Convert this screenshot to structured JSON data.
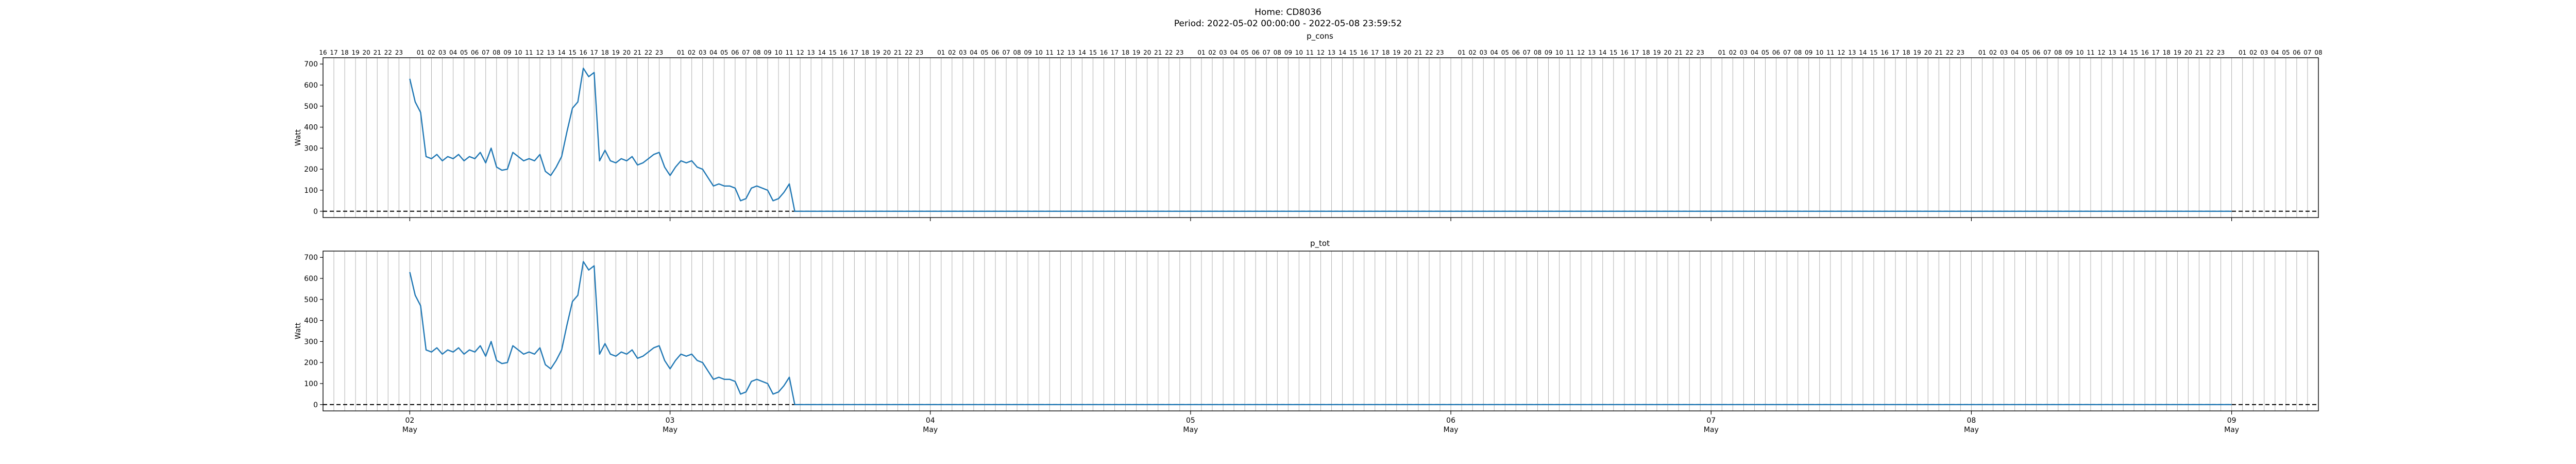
{
  "figure": {
    "title_line1": "Home: CD8036",
    "title_line2": "Period: 2022-05-02 00:00:00 - 2022-05-08 23:59:52"
  },
  "colors": {
    "line": "#1f77b4",
    "zero_line": "#000000",
    "hour_grid": "#b0b0b0",
    "axis": "#000000"
  },
  "chart_data": [
    {
      "type": "line",
      "title": "p_cons",
      "ylabel": "Watt",
      "xlabel": "",
      "x_unit": "hours since 2022-05-02 00:00",
      "xlim": [
        -8,
        176
      ],
      "ylim": [
        -30,
        730
      ],
      "y_ticks": [
        0,
        100,
        200,
        300,
        400,
        500,
        600,
        700
      ],
      "grid": "vertical hourly lines",
      "legend": "none",
      "zero_reference_line": "dashed at 0",
      "series": [
        {
          "x": [
            0,
            0.5,
            1,
            1.5,
            2,
            2.5,
            3,
            3.5,
            4,
            4.5,
            5,
            5.5,
            6,
            6.5,
            7,
            7.5,
            8,
            8.5,
            9,
            9.5,
            10,
            10.5,
            11,
            11.5,
            12,
            12.5,
            13,
            13.5,
            14,
            14.5,
            15,
            15.5,
            16,
            16.5,
            17,
            17.5,
            18,
            18.5,
            19,
            19.5,
            20,
            20.5,
            21,
            21.5,
            22,
            22.5,
            23,
            23.5,
            24,
            24.5,
            25,
            25.5,
            26,
            26.5,
            27,
            27.5,
            28,
            28.5,
            29,
            29.5,
            30,
            30.5,
            31,
            31.5,
            32,
            32.5,
            33,
            33.5,
            34,
            34.5,
            35,
            35.5,
            36,
            36.5,
            37,
            37.5,
            38,
            38.5,
            39,
            39.5,
            40,
            40.5,
            41,
            41.5,
            42,
            42.5,
            43,
            43.5,
            44,
            44.5,
            45,
            45.5,
            46,
            46.5,
            47,
            47.5,
            48,
            168
          ],
          "y": [
            630,
            520,
            470,
            260,
            250,
            270,
            240,
            260,
            250,
            270,
            240,
            260,
            250,
            280,
            230,
            300,
            210,
            195,
            200,
            280,
            260,
            240,
            250,
            240,
            270,
            190,
            170,
            210,
            260,
            380,
            490,
            520,
            680,
            640,
            660,
            240,
            290,
            240,
            230,
            250,
            240,
            260,
            220,
            230,
            250,
            270,
            280,
            210,
            170,
            210,
            240,
            230,
            240,
            210,
            200,
            160,
            120,
            130,
            120,
            120,
            110,
            50,
            60,
            110,
            120,
            110,
            100,
            50,
            60,
            90,
            130,
            0,
            0,
            0,
            0,
            0,
            0,
            0,
            0,
            0,
            0,
            0,
            0,
            0,
            0,
            0,
            0,
            0,
            0,
            0,
            0,
            0,
            0,
            0,
            0,
            0,
            0,
            0
          ]
        }
      ]
    },
    {
      "type": "line",
      "title": "p_tot",
      "ylabel": "Watt",
      "xlabel": "",
      "x_unit": "hours since 2022-05-02 00:00",
      "xlim": [
        -8,
        176
      ],
      "ylim": [
        -30,
        730
      ],
      "y_ticks": [
        0,
        100,
        200,
        300,
        400,
        500,
        600,
        700
      ],
      "grid": "vertical hourly lines",
      "legend": "none",
      "zero_reference_line": "dashed at 0",
      "series": [
        {
          "x": [
            0,
            0.5,
            1,
            1.5,
            2,
            2.5,
            3,
            3.5,
            4,
            4.5,
            5,
            5.5,
            6,
            6.5,
            7,
            7.5,
            8,
            8.5,
            9,
            9.5,
            10,
            10.5,
            11,
            11.5,
            12,
            12.5,
            13,
            13.5,
            14,
            14.5,
            15,
            15.5,
            16,
            16.5,
            17,
            17.5,
            18,
            18.5,
            19,
            19.5,
            20,
            20.5,
            21,
            21.5,
            22,
            22.5,
            23,
            23.5,
            24,
            24.5,
            25,
            25.5,
            26,
            26.5,
            27,
            27.5,
            28,
            28.5,
            29,
            29.5,
            30,
            30.5,
            31,
            31.5,
            32,
            32.5,
            33,
            33.5,
            34,
            34.5,
            35,
            35.5,
            36,
            36.5,
            37,
            37.5,
            38,
            38.5,
            39,
            39.5,
            40,
            40.5,
            41,
            41.5,
            42,
            42.5,
            43,
            43.5,
            44,
            44.5,
            45,
            45.5,
            46,
            46.5,
            47,
            47.5,
            48,
            168
          ],
          "y": [
            630,
            520,
            470,
            260,
            250,
            270,
            240,
            260,
            250,
            270,
            240,
            260,
            250,
            280,
            230,
            300,
            210,
            195,
            200,
            280,
            260,
            240,
            250,
            240,
            270,
            190,
            170,
            210,
            260,
            380,
            490,
            520,
            680,
            640,
            660,
            240,
            290,
            240,
            230,
            250,
            240,
            260,
            220,
            230,
            250,
            270,
            280,
            210,
            170,
            210,
            240,
            230,
            240,
            210,
            200,
            160,
            120,
            130,
            120,
            120,
            110,
            50,
            60,
            110,
            120,
            110,
            100,
            50,
            60,
            90,
            130,
            0,
            0,
            0,
            0,
            0,
            0,
            0,
            0,
            0,
            0,
            0,
            0,
            0,
            0,
            0,
            0,
            0,
            0,
            0,
            0,
            0,
            0,
            0,
            0,
            0,
            0,
            0
          ]
        }
      ]
    }
  ],
  "x_axis": {
    "day_ticks": [
      {
        "hour": 0,
        "day": "02",
        "month": "May"
      },
      {
        "hour": 24,
        "day": "03",
        "month": "May"
      },
      {
        "hour": 48,
        "day": "04",
        "month": "May"
      },
      {
        "hour": 72,
        "day": "05",
        "month": "May"
      },
      {
        "hour": 96,
        "day": "06",
        "month": "May"
      },
      {
        "hour": 120,
        "day": "07",
        "month": "May"
      },
      {
        "hour": 144,
        "day": "08",
        "month": "May"
      },
      {
        "hour": 168,
        "day": "09",
        "month": "May"
      }
    ],
    "hour_labels": [
      "16",
      "17",
      "18",
      "19",
      "20",
      "21",
      "22",
      "23",
      "01",
      "02",
      "03",
      "04",
      "05",
      "06",
      "07",
      "08",
      "09",
      "10",
      "11",
      "12",
      "13",
      "14",
      "15",
      "16",
      "17",
      "18",
      "19",
      "20",
      "21",
      "22",
      "23"
    ]
  }
}
